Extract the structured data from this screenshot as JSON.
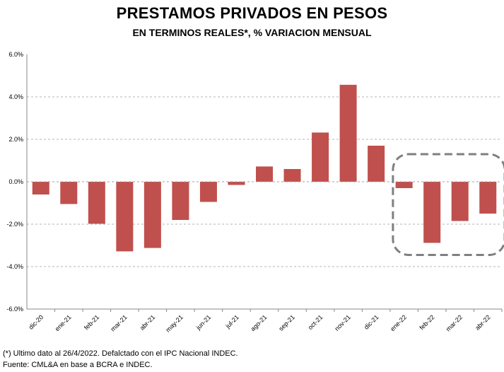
{
  "chart_data": {
    "type": "bar",
    "title": "PRESTAMOS PRIVADOS EN PESOS",
    "subtitle": "EN TERMINOS REALES*, % VARIACION MENSUAL",
    "categories": [
      "dic-20",
      "ene-21",
      "feb-21",
      "mar-21",
      "abr-21",
      "may-21",
      "jun-21",
      "jul-21",
      "ago-21",
      "sep-21",
      "oct-21",
      "nov-21",
      "dic-21",
      "ene-22",
      "feb-22",
      "mar-22",
      "abr-22"
    ],
    "values": [
      -0.6,
      -1.05,
      -1.98,
      -3.28,
      -3.12,
      -1.8,
      -0.95,
      -0.15,
      0.72,
      0.6,
      2.32,
      4.57,
      1.7,
      -0.3,
      -2.88,
      -1.85,
      -1.5
    ],
    "ylim": [
      -6,
      6
    ],
    "yticks": [
      "6.0%",
      "4.0%",
      "2.0%",
      "0.0%",
      "-2.0%",
      "-4.0%",
      "-6.0%"
    ],
    "ytick_values": [
      6,
      4,
      2,
      0,
      -2,
      -4,
      -6
    ],
    "bar_color": "#c0504d",
    "grid": true,
    "highlight": {
      "from": "ene-22",
      "to": "abr-22",
      "style": "dashed rounded box"
    },
    "xlabel": "",
    "ylabel": ""
  },
  "footnotes": {
    "note": "(*) Ultimo dato al 26/4/2022.  Defalctado con el IPC Nacional INDEC.",
    "source": "Fuente: CML&A en base a BCRA e INDEC."
  }
}
